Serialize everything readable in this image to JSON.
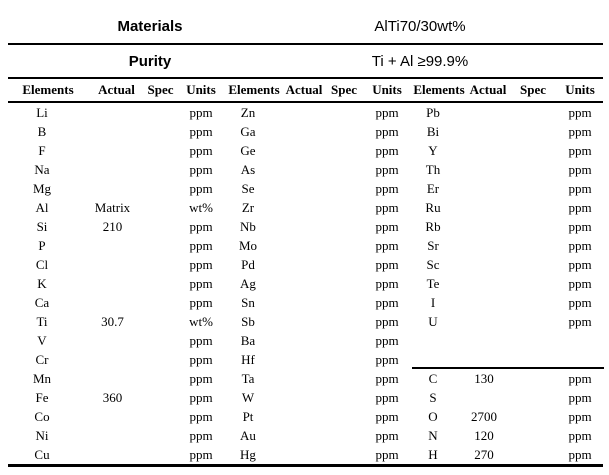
{
  "title_rows": {
    "materials_label": "Materials",
    "materials_value": "AlTi70/30wt%",
    "purity_label": "Purity",
    "purity_value": "Ti + Al ≥99.9%"
  },
  "table": {
    "col_headers": [
      "Elements",
      "Actual",
      "Spec",
      "Units",
      "Elements",
      "Actual",
      "Spec",
      "Units",
      "Elements",
      "Actual",
      "Spec",
      "Units"
    ],
    "g3_divider_after_row_index": 13,
    "rows": [
      [
        "Li",
        "",
        "",
        "ppm",
        "Zn",
        "",
        "",
        "ppm",
        "Pb",
        "",
        "",
        "ppm"
      ],
      [
        "B",
        "",
        "",
        "ppm",
        "Ga",
        "",
        "",
        "ppm",
        "Bi",
        "",
        "",
        "ppm"
      ],
      [
        "F",
        "",
        "",
        "ppm",
        "Ge",
        "",
        "",
        "ppm",
        "Y",
        "",
        "",
        "ppm"
      ],
      [
        "Na",
        "",
        "",
        "ppm",
        "As",
        "",
        "",
        "ppm",
        "Th",
        "",
        "",
        "ppm"
      ],
      [
        "Mg",
        "",
        "",
        "ppm",
        "Se",
        "",
        "",
        "ppm",
        "Er",
        "",
        "",
        "ppm"
      ],
      [
        "Al",
        "Matrix",
        "",
        "wt%",
        "Zr",
        "",
        "",
        "ppm",
        "Ru",
        "",
        "",
        "ppm"
      ],
      [
        "Si",
        "210",
        "",
        "ppm",
        "Nb",
        "",
        "",
        "ppm",
        "Rb",
        "",
        "",
        "ppm"
      ],
      [
        "P",
        "",
        "",
        "ppm",
        "Mo",
        "",
        "",
        "ppm",
        "Sr",
        "",
        "",
        "ppm"
      ],
      [
        "Cl",
        "",
        "",
        "ppm",
        "Pd",
        "",
        "",
        "ppm",
        "Sc",
        "",
        "",
        "ppm"
      ],
      [
        "K",
        "",
        "",
        "ppm",
        "Ag",
        "",
        "",
        "ppm",
        "Te",
        "",
        "",
        "ppm"
      ],
      [
        "Ca",
        "",
        "",
        "ppm",
        "Sn",
        "",
        "",
        "ppm",
        "I",
        "",
        "",
        "ppm"
      ],
      [
        "Ti",
        "30.7",
        "",
        "wt%",
        "Sb",
        "",
        "",
        "ppm",
        "U",
        "",
        "",
        "ppm"
      ],
      [
        "V",
        "",
        "",
        "ppm",
        "Ba",
        "",
        "",
        "ppm",
        "",
        "",
        "",
        ""
      ],
      [
        "Cr",
        "",
        "",
        "ppm",
        "Hf",
        "",
        "",
        "ppm",
        "",
        "",
        "",
        ""
      ],
      [
        "Mn",
        "",
        "",
        "ppm",
        "Ta",
        "",
        "",
        "ppm",
        "C",
        "130",
        "",
        "ppm"
      ],
      [
        "Fe",
        "360",
        "",
        "ppm",
        "W",
        "",
        "",
        "ppm",
        "S",
        "",
        "",
        "ppm"
      ],
      [
        "Co",
        "",
        "",
        "ppm",
        "Pt",
        "",
        "",
        "ppm",
        "O",
        "2700",
        "",
        "ppm"
      ],
      [
        "Ni",
        "",
        "",
        "ppm",
        "Au",
        "",
        "",
        "ppm",
        "N",
        "120",
        "",
        "ppm"
      ],
      [
        "Cu",
        "",
        "",
        "ppm",
        "Hg",
        "",
        "",
        "ppm",
        "H",
        "270",
        "",
        "ppm"
      ]
    ]
  }
}
